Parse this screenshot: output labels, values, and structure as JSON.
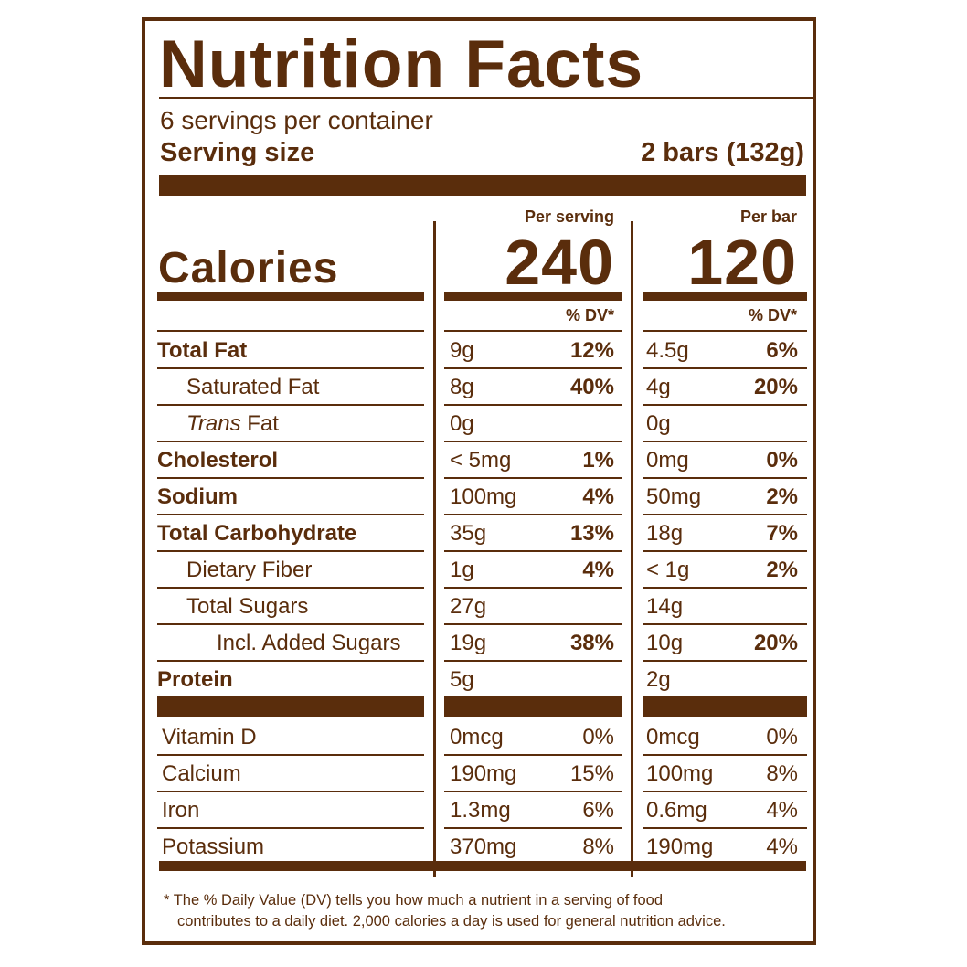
{
  "title": "Nutrition Facts",
  "servings_per_container": "6 servings per container",
  "serving_size_label": "Serving size",
  "serving_size_value": "2 bars (132g)",
  "col_per_serving": "Per serving",
  "col_per_bar": "Per bar",
  "calories_label": "Calories",
  "calories_per_serving": "240",
  "calories_per_bar": "120",
  "dv_label": "% DV*",
  "nutrients": [
    {
      "label": "Total Fat",
      "bold": true,
      "indent": 0,
      "serv_amt": "9g",
      "serv_dv": "12%",
      "bar_amt": "4.5g",
      "bar_dv": "6%"
    },
    {
      "label": "Saturated Fat",
      "bold": false,
      "indent": 1,
      "serv_amt": "8g",
      "serv_dv": "40%",
      "bar_amt": "4g",
      "bar_dv": "20%"
    },
    {
      "label": "Trans Fat",
      "bold": false,
      "indent": 1,
      "italic_prefix": "Trans",
      "serv_amt": "0g",
      "serv_dv": "",
      "bar_amt": "0g",
      "bar_dv": ""
    },
    {
      "label": "Cholesterol",
      "bold": true,
      "indent": 0,
      "serv_amt": "< 5mg",
      "serv_dv": "1%",
      "bar_amt": "0mg",
      "bar_dv": "0%"
    },
    {
      "label": "Sodium",
      "bold": true,
      "indent": 0,
      "serv_amt": "100mg",
      "serv_dv": "4%",
      "bar_amt": "50mg",
      "bar_dv": "2%"
    },
    {
      "label": "Total Carbohydrate",
      "bold": true,
      "indent": 0,
      "serv_amt": "35g",
      "serv_dv": "13%",
      "bar_amt": "18g",
      "bar_dv": "7%"
    },
    {
      "label": "Dietary Fiber",
      "bold": false,
      "indent": 1,
      "serv_amt": "1g",
      "serv_dv": "4%",
      "bar_amt": "< 1g",
      "bar_dv": "2%"
    },
    {
      "label": "Total Sugars",
      "bold": false,
      "indent": 1,
      "serv_amt": "27g",
      "serv_dv": "",
      "bar_amt": "14g",
      "bar_dv": ""
    },
    {
      "label": "Incl. Added Sugars",
      "bold": false,
      "indent": 2,
      "serv_amt": "19g",
      "serv_dv": "38%",
      "bar_amt": "10g",
      "bar_dv": "20%"
    },
    {
      "label": "Protein",
      "bold": true,
      "indent": 0,
      "serv_amt": "5g",
      "serv_dv": "",
      "bar_amt": "2g",
      "bar_dv": ""
    }
  ],
  "vitamins": [
    {
      "label": "Vitamin D",
      "serv_amt": "0mcg",
      "serv_dv": "0%",
      "bar_amt": "0mcg",
      "bar_dv": "0%"
    },
    {
      "label": "Calcium",
      "serv_amt": "190mg",
      "serv_dv": "15%",
      "bar_amt": "100mg",
      "bar_dv": "8%"
    },
    {
      "label": "Iron",
      "serv_amt": "1.3mg",
      "serv_dv": "6%",
      "bar_amt": "0.6mg",
      "bar_dv": "4%"
    },
    {
      "label": "Potassium",
      "serv_amt": "370mg",
      "serv_dv": "8%",
      "bar_amt": "190mg",
      "bar_dv": "4%"
    }
  ],
  "footnote_line1": "* The % Daily Value (DV) tells you how much a nutrient in a serving of food",
  "footnote_line2": "contributes to a daily diet. 2,000 calories a day is used for general nutrition advice.",
  "colors": {
    "ink": "#5a2d0c",
    "background": "#ffffff"
  }
}
